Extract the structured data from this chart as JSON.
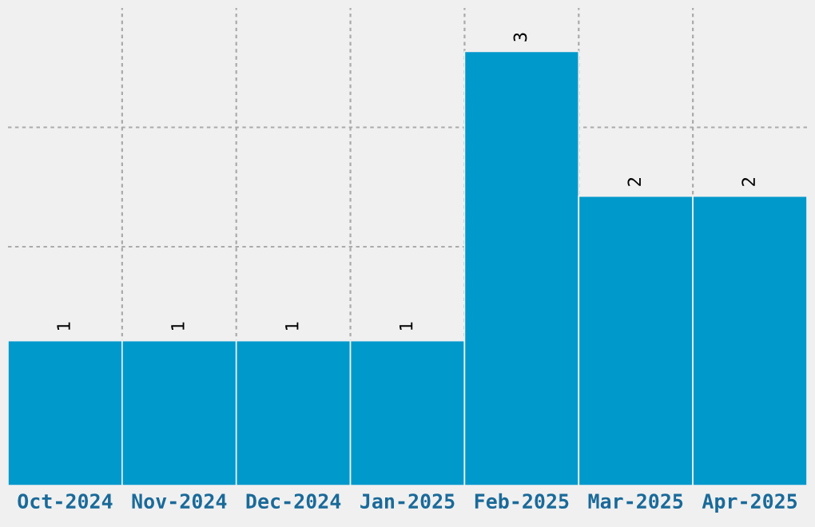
{
  "chart_data": {
    "type": "bar",
    "categories": [
      "Oct-2024",
      "Nov-2024",
      "Dec-2024",
      "Jan-2025",
      "Feb-2025",
      "Mar-2025",
      "Apr-2025"
    ],
    "values": [
      1,
      1,
      1,
      1,
      3,
      2,
      2
    ],
    "color": "#0099cc",
    "tick_labels": "x",
    "grid": true,
    "data_labels": true
  }
}
